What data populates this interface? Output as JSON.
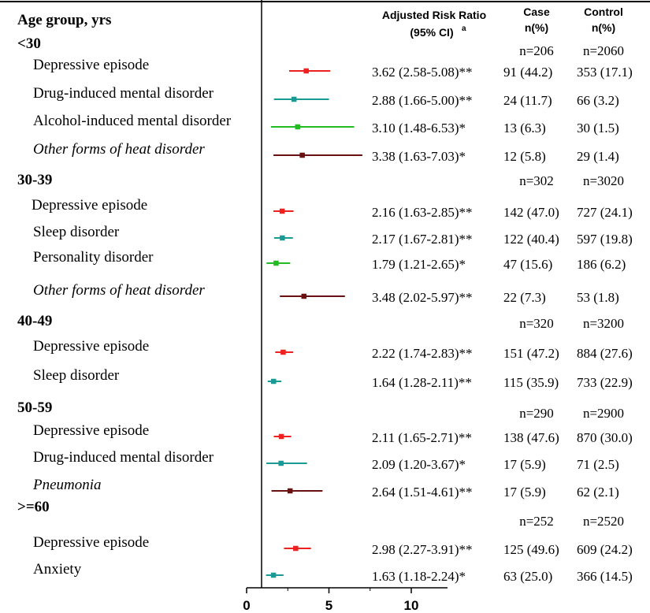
{
  "chart_data": {
    "type": "forest",
    "headers": {
      "label": "Age group, yrs",
      "rr": "Adjusted Risk Ratio",
      "rr_ci": "(95% CI)",
      "rr_sup": "a",
      "case_line1": "Case",
      "case_line2": "n(%)",
      "control_line1": "Control",
      "control_line2": "n(%)"
    },
    "xlim": [
      0,
      12
    ],
    "ticks": [
      0,
      5,
      10
    ],
    "tick_labels": [
      "0",
      "5",
      "10"
    ],
    "groups": [
      {
        "name": "<30",
        "case_n": "n=206",
        "control_n": "n=2060",
        "rows": [
          {
            "label": "Depressive episode",
            "italic": false,
            "rr": 3.62,
            "lo": 2.58,
            "hi": 5.08,
            "rr_text": "3.62 (2.58-5.08)**",
            "case": "91 (44.2)",
            "control": "353 (17.1)",
            "color": "#ee2020"
          },
          {
            "label": "Drug-induced mental disorder",
            "italic": false,
            "rr": 2.88,
            "lo": 1.66,
            "hi": 5.0,
            "rr_text": "2.88 (1.66-5.00)**",
            "case": "24 (11.7)",
            "control": "66 (3.2)",
            "color": "#1a9a94"
          },
          {
            "label": "Alcohol-induced mental disorder",
            "italic": false,
            "rr": 3.1,
            "lo": 1.48,
            "hi": 6.53,
            "rr_text": "3.10 (1.48-6.53)*",
            "case": "13 (6.3)",
            "control": "30 (1.5)",
            "color": "#22bb22"
          },
          {
            "label": "Other forms of heat disorder",
            "italic": true,
            "rr": 3.38,
            "lo": 1.63,
            "hi": 7.03,
            "rr_text": "3.38 (1.63-7.03)*",
            "case": "12 (5.8)",
            "control": "29 (1.4)",
            "color": "#6b1010"
          }
        ]
      },
      {
        "name": "30-39",
        "case_n": "n=302",
        "control_n": "n=3020",
        "rows": [
          {
            "label": "Depressive episode",
            "italic": false,
            "rr": 2.16,
            "lo": 1.63,
            "hi": 2.85,
            "rr_text": "2.16 (1.63-2.85)**",
            "case": "142 (47.0)",
            "control": "727 (24.1)",
            "color": "#ee2020"
          },
          {
            "label": "Sleep disorder",
            "italic": false,
            "rr": 2.17,
            "lo": 1.67,
            "hi": 2.81,
            "rr_text": "2.17 (1.67-2.81)**",
            "case": "122 (40.4)",
            "control": "597 (19.8)",
            "color": "#1a9a94"
          },
          {
            "label": "Personality disorder",
            "italic": false,
            "rr": 1.79,
            "lo": 1.21,
            "hi": 2.65,
            "rr_text": "1.79 (1.21-2.65)*",
            "case": "47 (15.6)",
            "control": "186 (6.2)",
            "color": "#22bb22"
          },
          {
            "label": "Other forms of heat disorder",
            "italic": true,
            "rr": 3.48,
            "lo": 2.02,
            "hi": 5.97,
            "rr_text": "3.48 (2.02-5.97)**",
            "case": "22 (7.3)",
            "control": "53 (1.8)",
            "color": "#6b1010"
          }
        ]
      },
      {
        "name": "40-49",
        "case_n": "n=320",
        "control_n": "n=3200",
        "rows": [
          {
            "label": "Depressive episode",
            "italic": false,
            "rr": 2.22,
            "lo": 1.74,
            "hi": 2.83,
            "rr_text": "2.22 (1.74-2.83)**",
            "case": "151 (47.2)",
            "control": "884 (27.6)",
            "color": "#ee2020"
          },
          {
            "label": "Sleep disorder",
            "italic": false,
            "rr": 1.64,
            "lo": 1.28,
            "hi": 2.11,
            "rr_text": "1.64 (1.28-2.11)**",
            "case": "115 (35.9)",
            "control": "733 (22.9)",
            "color": "#1a9a94"
          }
        ]
      },
      {
        "name": "50-59",
        "case_n": "n=290",
        "control_n": "n=2900",
        "rows": [
          {
            "label": "Depressive episode",
            "italic": false,
            "rr": 2.11,
            "lo": 1.65,
            "hi": 2.71,
            "rr_text": "2.11 (1.65-2.71)**",
            "case": "138 (47.6)",
            "control": "870 (30.0)",
            "color": "#ee2020"
          },
          {
            "label": "Drug-induced mental disorder",
            "italic": false,
            "rr": 2.09,
            "lo": 1.2,
            "hi": 3.67,
            "rr_text": "2.09 (1.20-3.67)*",
            "case": "17 (5.9)",
            "control": "71 (2.5)",
            "color": "#1a9a94"
          },
          {
            "label": "Pneumonia",
            "italic": true,
            "rr": 2.64,
            "lo": 1.51,
            "hi": 4.61,
            "rr_text": "2.64 (1.51-4.61)**",
            "case": "17 (5.9)",
            "control": "62 (2.1)",
            "color": "#6b1010"
          }
        ]
      },
      {
        "name": ">=60",
        "case_n": "n=252",
        "control_n": "n=2520",
        "rows": [
          {
            "label": "Depressive episode",
            "italic": false,
            "rr": 2.98,
            "lo": 2.27,
            "hi": 3.91,
            "rr_text": "2.98 (2.27-3.91)**",
            "case": "125 (49.6)",
            "control": "609 (24.2)",
            "color": "#ee2020"
          },
          {
            "label": "Anxiety",
            "italic": false,
            "rr": 1.63,
            "lo": 1.18,
            "hi": 2.24,
            "rr_text": "1.63 (1.18-2.24)*",
            "case": "63 (25.0)",
            "control": "366 (14.5)",
            "color": "#1a9a94"
          }
        ]
      }
    ]
  }
}
